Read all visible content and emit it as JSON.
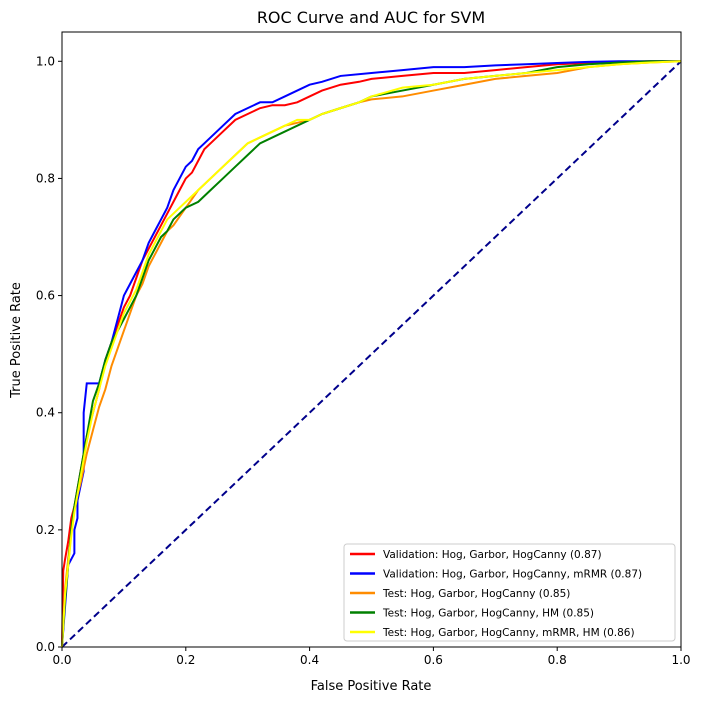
{
  "chart_data": {
    "type": "line",
    "title": "ROC Curve and AUC for SVM",
    "xlabel": "False Positive Rate",
    "ylabel": "True Positive Rate",
    "xlim": [
      0,
      1.0
    ],
    "ylim": [
      0,
      1.05
    ],
    "x_ticks": [
      "0.0",
      "0.2",
      "0.4",
      "0.6",
      "0.8",
      "1.0"
    ],
    "y_ticks": [
      "0.0",
      "0.2",
      "0.4",
      "0.6",
      "0.8",
      "1.0"
    ],
    "legend_position": "lower-right",
    "grid": false,
    "diagonal": {
      "color": "#00008b",
      "style": "dashed",
      "x": [
        0,
        1
      ],
      "y": [
        0,
        1
      ]
    },
    "series": [
      {
        "name": "Validation: Hog, Garbor, HogCanny (0.87)",
        "color": "#ff0000",
        "x": [
          0,
          0.002,
          0.005,
          0.01,
          0.015,
          0.02,
          0.025,
          0.03,
          0.035,
          0.04,
          0.05,
          0.06,
          0.07,
          0.08,
          0.09,
          0.1,
          0.11,
          0.12,
          0.13,
          0.14,
          0.15,
          0.16,
          0.17,
          0.18,
          0.19,
          0.2,
          0.21,
          0.22,
          0.23,
          0.24,
          0.25,
          0.26,
          0.28,
          0.3,
          0.32,
          0.34,
          0.36,
          0.38,
          0.4,
          0.42,
          0.45,
          0.48,
          0.5,
          0.55,
          0.6,
          0.65,
          0.7,
          0.75,
          0.8,
          0.85,
          0.9,
          0.95,
          1.0
        ],
        "y": [
          0,
          0.13,
          0.15,
          0.18,
          0.22,
          0.24,
          0.27,
          0.3,
          0.33,
          0.36,
          0.4,
          0.44,
          0.49,
          0.52,
          0.55,
          0.58,
          0.6,
          0.63,
          0.66,
          0.68,
          0.7,
          0.72,
          0.74,
          0.76,
          0.78,
          0.8,
          0.81,
          0.83,
          0.85,
          0.86,
          0.87,
          0.88,
          0.9,
          0.91,
          0.92,
          0.925,
          0.925,
          0.93,
          0.94,
          0.95,
          0.96,
          0.965,
          0.97,
          0.975,
          0.98,
          0.98,
          0.985,
          0.99,
          0.995,
          0.997,
          0.999,
          1.0,
          1.0
        ]
      },
      {
        "name": "Validation: Hog, Garbor, HogCanny, mRMR (0.87)",
        "color": "#0000ff",
        "x": [
          0,
          0.01,
          0.02,
          0.02,
          0.025,
          0.025,
          0.035,
          0.035,
          0.04,
          0.045,
          0.06,
          0.07,
          0.08,
          0.09,
          0.1,
          0.11,
          0.12,
          0.13,
          0.14,
          0.15,
          0.16,
          0.17,
          0.18,
          0.19,
          0.2,
          0.21,
          0.22,
          0.23,
          0.24,
          0.25,
          0.26,
          0.28,
          0.3,
          0.32,
          0.34,
          0.36,
          0.38,
          0.4,
          0.42,
          0.45,
          0.5,
          0.55,
          0.6,
          0.65,
          0.7,
          0.75,
          0.8,
          0.85,
          0.9,
          0.95,
          1.0
        ],
        "y": [
          0,
          0.14,
          0.16,
          0.2,
          0.22,
          0.25,
          0.3,
          0.4,
          0.45,
          0.45,
          0.45,
          0.49,
          0.52,
          0.56,
          0.6,
          0.62,
          0.64,
          0.66,
          0.69,
          0.71,
          0.73,
          0.75,
          0.78,
          0.8,
          0.82,
          0.83,
          0.85,
          0.86,
          0.87,
          0.88,
          0.89,
          0.91,
          0.92,
          0.93,
          0.93,
          0.94,
          0.95,
          0.96,
          0.965,
          0.975,
          0.98,
          0.985,
          0.99,
          0.99,
          0.993,
          0.995,
          0.997,
          0.999,
          1.0,
          1.0,
          1.0
        ]
      },
      {
        "name": "Test: Hog, Garbor, HogCanny (0.85)",
        "color": "#ff8c00",
        "x": [
          0,
          0.005,
          0.01,
          0.015,
          0.02,
          0.03,
          0.04,
          0.05,
          0.06,
          0.07,
          0.08,
          0.09,
          0.1,
          0.11,
          0.12,
          0.13,
          0.14,
          0.15,
          0.16,
          0.17,
          0.18,
          0.2,
          0.22,
          0.24,
          0.26,
          0.28,
          0.3,
          0.32,
          0.34,
          0.36,
          0.38,
          0.4,
          0.42,
          0.45,
          0.48,
          0.5,
          0.55,
          0.6,
          0.65,
          0.7,
          0.75,
          0.8,
          0.85,
          0.9,
          0.95,
          1.0
        ],
        "y": [
          0,
          0.1,
          0.15,
          0.2,
          0.24,
          0.28,
          0.33,
          0.37,
          0.41,
          0.44,
          0.48,
          0.51,
          0.54,
          0.57,
          0.6,
          0.62,
          0.65,
          0.67,
          0.69,
          0.71,
          0.72,
          0.75,
          0.78,
          0.8,
          0.82,
          0.84,
          0.86,
          0.87,
          0.88,
          0.89,
          0.895,
          0.9,
          0.91,
          0.92,
          0.93,
          0.935,
          0.94,
          0.95,
          0.96,
          0.97,
          0.975,
          0.98,
          0.99,
          0.995,
          0.998,
          1.0
        ]
      },
      {
        "name": "Test: Hog, Garbor, HogCanny, HM (0.85)",
        "color": "#008000",
        "x": [
          0,
          0.005,
          0.01,
          0.015,
          0.02,
          0.03,
          0.04,
          0.05,
          0.06,
          0.07,
          0.08,
          0.09,
          0.1,
          0.11,
          0.12,
          0.13,
          0.14,
          0.15,
          0.16,
          0.17,
          0.18,
          0.19,
          0.2,
          0.22,
          0.24,
          0.26,
          0.28,
          0.3,
          0.32,
          0.34,
          0.36,
          0.38,
          0.4,
          0.42,
          0.45,
          0.48,
          0.5,
          0.55,
          0.6,
          0.65,
          0.7,
          0.75,
          0.8,
          0.85,
          0.9,
          0.95,
          1.0
        ],
        "y": [
          0,
          0.08,
          0.14,
          0.2,
          0.24,
          0.3,
          0.36,
          0.42,
          0.45,
          0.49,
          0.52,
          0.54,
          0.56,
          0.58,
          0.6,
          0.63,
          0.66,
          0.68,
          0.7,
          0.71,
          0.73,
          0.74,
          0.75,
          0.76,
          0.78,
          0.8,
          0.82,
          0.84,
          0.86,
          0.87,
          0.88,
          0.89,
          0.9,
          0.91,
          0.92,
          0.93,
          0.94,
          0.95,
          0.96,
          0.97,
          0.975,
          0.98,
          0.99,
          0.995,
          0.998,
          1.0,
          1.0
        ]
      },
      {
        "name": "Test: Hog, Garbor, HogCanny, mRMR, HM (0.86)",
        "color": "#ffff00",
        "x": [
          0,
          0.005,
          0.01,
          0.015,
          0.02,
          0.03,
          0.04,
          0.05,
          0.06,
          0.07,
          0.08,
          0.09,
          0.1,
          0.11,
          0.12,
          0.13,
          0.14,
          0.15,
          0.16,
          0.17,
          0.18,
          0.2,
          0.22,
          0.24,
          0.26,
          0.28,
          0.3,
          0.32,
          0.34,
          0.36,
          0.38,
          0.4,
          0.42,
          0.45,
          0.48,
          0.5,
          0.55,
          0.6,
          0.65,
          0.7,
          0.75,
          0.8,
          0.85,
          0.9,
          0.95,
          1.0
        ],
        "y": [
          0,
          0.09,
          0.14,
          0.19,
          0.23,
          0.29,
          0.35,
          0.4,
          0.44,
          0.48,
          0.51,
          0.54,
          0.57,
          0.59,
          0.61,
          0.64,
          0.67,
          0.69,
          0.71,
          0.73,
          0.74,
          0.76,
          0.78,
          0.8,
          0.82,
          0.84,
          0.86,
          0.87,
          0.88,
          0.89,
          0.9,
          0.9,
          0.91,
          0.92,
          0.93,
          0.94,
          0.955,
          0.96,
          0.97,
          0.975,
          0.98,
          0.985,
          0.99,
          0.995,
          0.998,
          1.0
        ]
      }
    ]
  }
}
